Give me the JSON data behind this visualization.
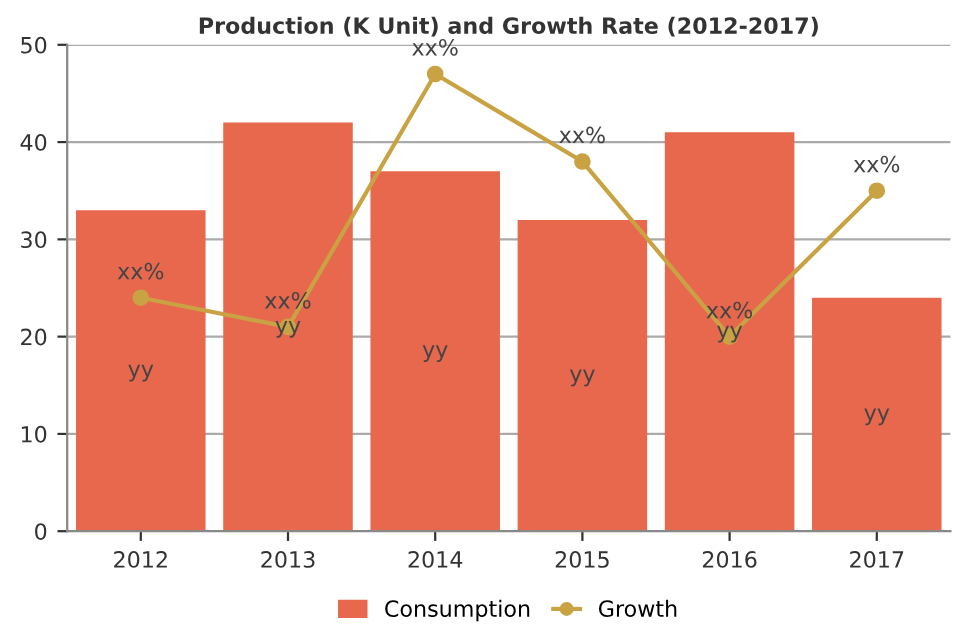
{
  "chart_data": {
    "type": "bar",
    "title": "Production (K Unit) and Growth Rate (2012-2017)",
    "categories": [
      "2012",
      "2013",
      "2014",
      "2015",
      "2016",
      "2017"
    ],
    "series": [
      {
        "name": "Consumption",
        "color": "#e8684e",
        "values": [
          33,
          42,
          37,
          32,
          41,
          24
        ],
        "value_labels": [
          "yy",
          "yy",
          "yy",
          "yy",
          "yy",
          "yy"
        ]
      },
      {
        "name": "Growth",
        "type": "line",
        "color": "#c9a243",
        "values": [
          24,
          21,
          47,
          38,
          20,
          35
        ],
        "value_labels": [
          "xx%",
          "xx%",
          "xx%",
          "xx%",
          "xx%",
          "xx%"
        ],
        "marker": "circle",
        "line_style": "solid"
      }
    ],
    "ylim": [
      0,
      50
    ],
    "yticks": [
      0,
      10,
      20,
      30,
      40,
      50
    ],
    "grid": "y",
    "legend": "bottom"
  }
}
